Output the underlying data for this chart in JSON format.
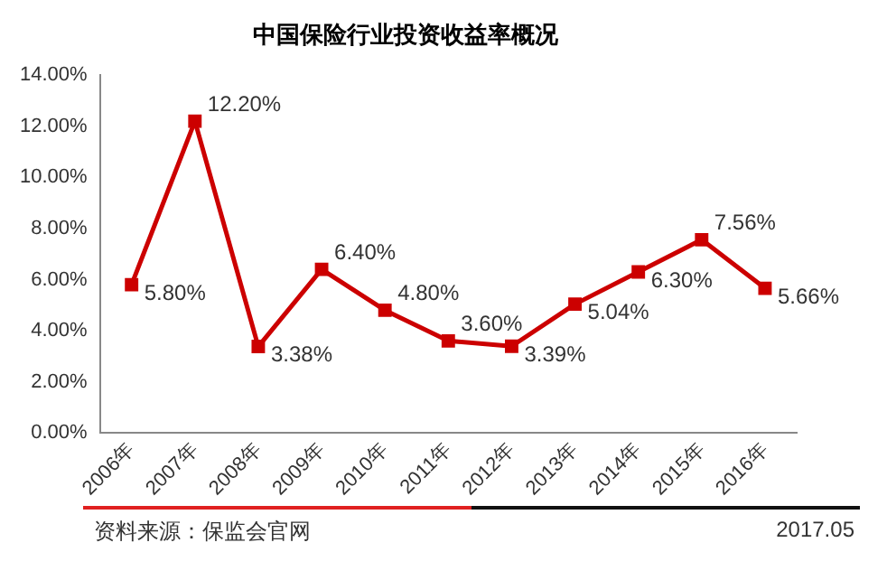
{
  "chart_data": {
    "type": "line",
    "title": "中国保险行业投资收益率概况",
    "categories": [
      "2006年",
      "2007年",
      "2008年",
      "2009年",
      "2010年",
      "2011年",
      "2012年",
      "2013年",
      "2014年",
      "2015年",
      "2016年"
    ],
    "series": [
      {
        "color": "#cc0000",
        "values": [
          5.8,
          12.2,
          3.38,
          6.4,
          4.8,
          3.6,
          3.39,
          5.04,
          6.3,
          7.56,
          5.66
        ]
      }
    ],
    "value_labels": [
      "5.80%",
      "12.20%",
      "3.38%",
      "6.40%",
      "4.80%",
      "3.60%",
      "3.39%",
      "5.04%",
      "6.30%",
      "7.56%",
      "5.66%"
    ],
    "ylim": [
      0,
      14
    ],
    "yticks": [
      {
        "value": 0,
        "label": "0.00%"
      },
      {
        "value": 2,
        "label": "2.00%"
      },
      {
        "value": 4,
        "label": "4.00%"
      },
      {
        "value": 6,
        "label": "6.00%"
      },
      {
        "value": 8,
        "label": "8.00%"
      },
      {
        "value": 10,
        "label": "10.00%"
      },
      {
        "value": 12,
        "label": "12.00%"
      },
      {
        "value": 14,
        "label": "14.00%"
      }
    ],
    "grid": false,
    "legend": false,
    "marker": "square",
    "line_style": "solid",
    "annotations": [
      "资料来源：保监会官网",
      "2017.05"
    ]
  }
}
